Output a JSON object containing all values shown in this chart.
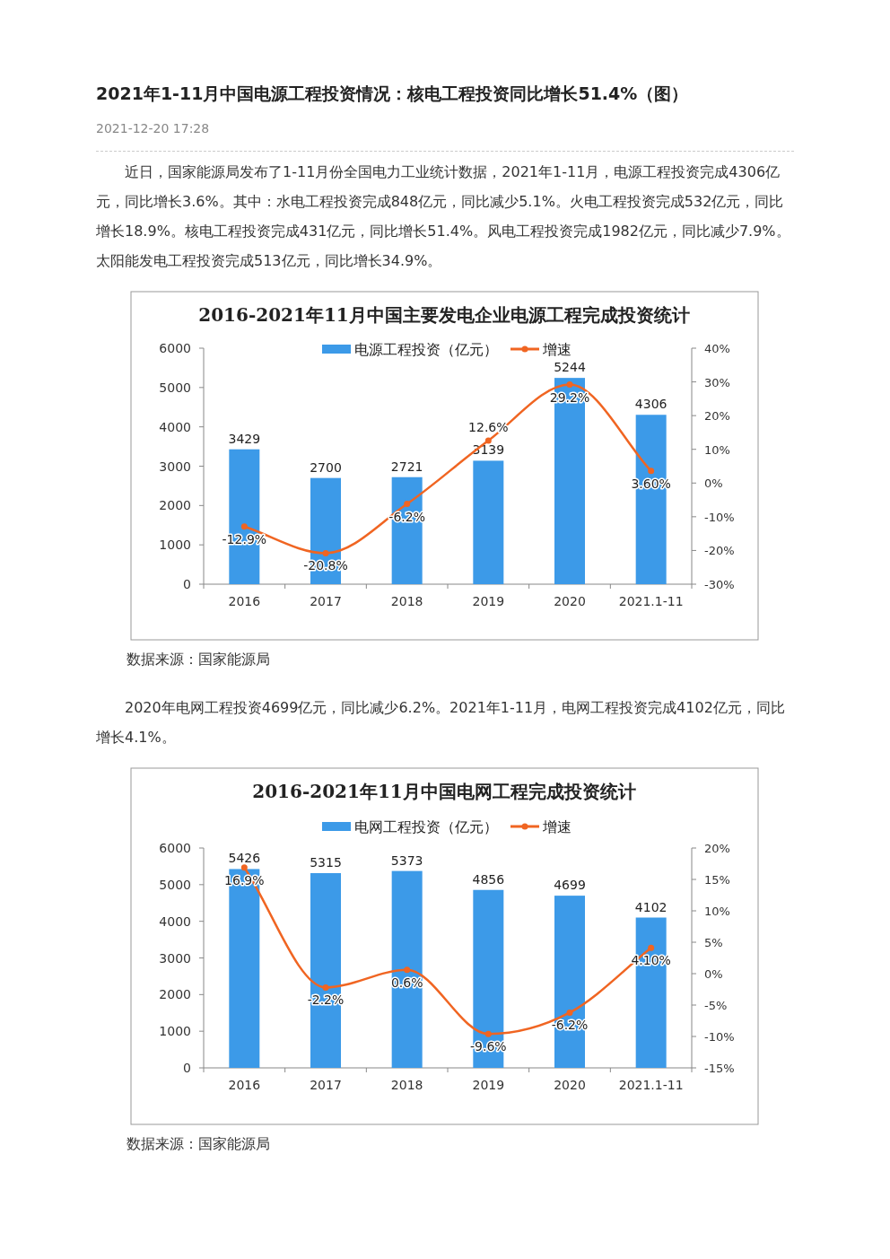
{
  "chart_data": [
    {
      "type": "bar",
      "title": "2016-2021年11月中国主要发电企业电源工程完成投资统计",
      "categories": [
        "2016",
        "2017",
        "2018",
        "2019",
        "2020",
        "2021.1-11"
      ],
      "series": [
        {
          "name": "电源工程投资（亿元）",
          "color": "#3c9ae8",
          "values": [
            3429,
            2700,
            2721,
            3139,
            5244,
            4306
          ],
          "value_labels": [
            "3429",
            "2700",
            "2721",
            "3139",
            "5244",
            "4306"
          ]
        },
        {
          "name": "增速",
          "type": "line",
          "axis": "y2",
          "color": "#f06522",
          "values": [
            -12.9,
            -20.8,
            -6.2,
            12.6,
            29.2,
            3.6
          ],
          "value_labels": [
            "-12.9%",
            "-20.8%",
            "-6.2%",
            "12.6%",
            "29.2%",
            "3.60%"
          ]
        }
      ],
      "ylim": [
        0,
        6000
      ],
      "yticks": [
        0,
        1000,
        2000,
        3000,
        4000,
        5000,
        6000
      ],
      "y2lim": [
        -30,
        40
      ],
      "y2ticks": [
        {
          "value": -30,
          "label": "-30%"
        },
        {
          "value": -20,
          "label": "-20%"
        },
        {
          "value": -10,
          "label": "-10%"
        },
        {
          "value": 0,
          "label": "0%"
        },
        {
          "value": 10,
          "label": "10%"
        },
        {
          "value": 20,
          "label": "20%"
        },
        {
          "value": 30,
          "label": "30%"
        },
        {
          "value": 40,
          "label": "40%"
        }
      ],
      "legend": "top",
      "marker": "circle",
      "grid": false,
      "annotations": [
        "2021年1-11月中国电源工程投资情况：核电工程投资同比增长51.4%（图）",
        "2021-12-20 17:28",
        "近日，国家能源局发布了1-11月份全国电力工业统计数据，2021年1-11月，电源工程投资完成4306亿元，同比增长3.6%。其中：水电工程投资完成848亿元，同比减少5.1%。火电工程投资完成532亿元，同比增长18.9%。核电工程投资完成431亿元，同比增长51.4%。风电工程投资完成1982亿元，同比减少7.9%。太阳能发电工程投资完成513亿元，同比增长34.9%。",
        "数据来源：国家能源局"
      ]
    },
    {
      "type": "bar",
      "title": "2016-2021年11月中国电网工程完成投资统计",
      "categories": [
        "2016",
        "2017",
        "2018",
        "2019",
        "2020",
        "2021.1-11"
      ],
      "series": [
        {
          "name": "电网工程投资（亿元）",
          "color": "#3c9ae8",
          "values": [
            5426,
            5315,
            5373,
            4856,
            4699,
            4102
          ],
          "value_labels": [
            "5426",
            "5315",
            "5373",
            "4856",
            "4699",
            "4102"
          ]
        },
        {
          "name": "增速",
          "type": "line",
          "axis": "y2",
          "color": "#f06522",
          "values": [
            16.9,
            -2.2,
            0.6,
            -9.6,
            -6.2,
            4.1
          ],
          "value_labels": [
            "16.9%",
            "-2.2%",
            "0.6%",
            "-9.6%",
            "-6.2%",
            "4.10%"
          ]
        }
      ],
      "ylim": [
        0,
        6000
      ],
      "yticks": [
        0,
        1000,
        2000,
        3000,
        4000,
        5000,
        6000
      ],
      "y2lim": [
        -15,
        20
      ],
      "y2ticks": [
        {
          "value": -15,
          "label": "-15%"
        },
        {
          "value": -10,
          "label": "-10%"
        },
        {
          "value": -5,
          "label": "-5%"
        },
        {
          "value": 0,
          "label": "0%"
        },
        {
          "value": 5,
          "label": "5%"
        },
        {
          "value": 10,
          "label": "10%"
        },
        {
          "value": 15,
          "label": "15%"
        },
        {
          "value": 20,
          "label": "20%"
        }
      ],
      "legend": "top",
      "marker": "circle",
      "grid": false,
      "annotations": [
        "2020年电网工程投资4699亿元，同比减少6.2%。2021年1-11月，电网工程投资完成4102亿元，同比增长4.1%。",
        "数据来源：国家能源局"
      ]
    }
  ]
}
